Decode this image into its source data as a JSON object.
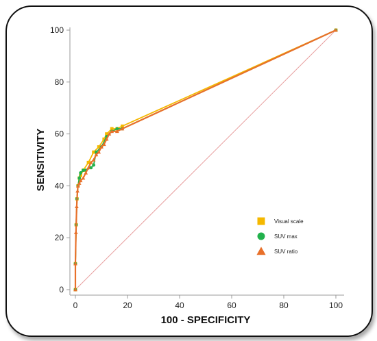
{
  "chart_data": {
    "type": "line",
    "title": "",
    "xlabel": "100 - SPECIFICITY",
    "ylabel": "SENSITIVITY",
    "xlim": [
      0,
      100
    ],
    "ylim": [
      0,
      100
    ],
    "xticks": [
      0,
      20,
      40,
      60,
      80,
      100
    ],
    "yticks": [
      0,
      20,
      40,
      60,
      80,
      100
    ],
    "grid": false,
    "legend_position": "lower-right",
    "reference_line": {
      "x": [
        0,
        100
      ],
      "y": [
        0,
        100
      ],
      "color": "#e8a0a0"
    },
    "series": [
      {
        "name": "Visual scale",
        "marker": "square",
        "color": "#f5b800",
        "x": [
          0,
          0,
          0.3,
          0.6,
          1,
          1.5,
          2,
          3,
          5,
          7,
          9,
          11,
          12,
          14,
          16,
          18,
          100
        ],
        "y": [
          0,
          10,
          25,
          35,
          40,
          43,
          44,
          46,
          49,
          53,
          55,
          58,
          60,
          62,
          62,
          63,
          100
        ]
      },
      {
        "name": "SUV max",
        "marker": "circle",
        "color": "#22b14c",
        "x": [
          0,
          0,
          0.3,
          0.6,
          1,
          1.5,
          2,
          3,
          4,
          6,
          7,
          8,
          10,
          12,
          14,
          16,
          18,
          100
        ],
        "y": [
          0,
          10,
          25,
          35,
          40,
          43,
          45,
          46,
          46,
          47,
          48,
          53,
          55,
          59,
          61,
          62,
          62,
          100
        ]
      },
      {
        "name": "SUV ratio",
        "marker": "triangle",
        "color": "#e8702a",
        "x": [
          0,
          0,
          0.2,
          0.5,
          0.8,
          1,
          1.5,
          2,
          3,
          4,
          5,
          6,
          7,
          8,
          9,
          10,
          11,
          12,
          13,
          14,
          16,
          18,
          100
        ],
        "y": [
          0,
          10,
          22,
          32,
          38,
          40,
          41,
          42,
          43,
          45,
          47,
          49,
          50,
          52,
          53,
          55,
          56,
          58,
          60,
          61,
          61,
          62,
          100
        ]
      }
    ]
  }
}
